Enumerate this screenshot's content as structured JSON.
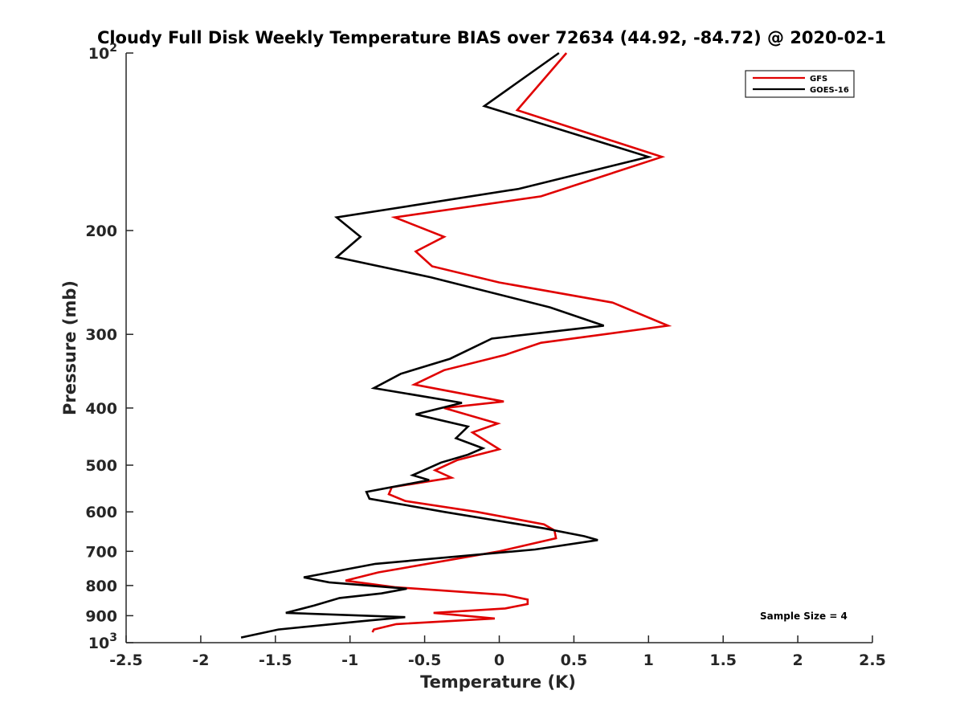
{
  "chart_data": {
    "type": "line",
    "title": "Cloudy Full Disk Weekly Temperature BIAS over 72634 (44.92, -84.72) @ 2020-02-1",
    "xlabel": "Temperature (K)",
    "ylabel": "Pressure (mb)",
    "xlim": [
      -2.5,
      2.5
    ],
    "ylim": [
      100,
      1000
    ],
    "y_scale": "log",
    "y_reversed": true,
    "grid": false,
    "legend_position": "top-right",
    "x_ticks": [
      "-2.5",
      "-2",
      "-1.5",
      "-1",
      "-0.5",
      "0",
      "0.5",
      "1",
      "1.5",
      "2",
      "2.5"
    ],
    "x_tick_values": [
      -2.5,
      -2,
      -1.5,
      -1,
      -0.5,
      0,
      0.5,
      1,
      1.5,
      2,
      2.5
    ],
    "y_ticks": [
      {
        "value": 100,
        "base": "10",
        "exp": "2"
      },
      {
        "value": 200,
        "base": "200",
        "exp": ""
      },
      {
        "value": 300,
        "base": "300",
        "exp": ""
      },
      {
        "value": 400,
        "base": "400",
        "exp": ""
      },
      {
        "value": 500,
        "base": "500",
        "exp": ""
      },
      {
        "value": 600,
        "base": "600",
        "exp": ""
      },
      {
        "value": 700,
        "base": "700",
        "exp": ""
      },
      {
        "value": 800,
        "base": "800",
        "exp": ""
      },
      {
        "value": 900,
        "base": "900",
        "exp": ""
      },
      {
        "value": 1000,
        "base": "10",
        "exp": "3"
      }
    ],
    "annotation": "Sample Size = 4",
    "series": [
      {
        "name": "GFS",
        "color": "#e00000",
        "points": [
          [
            0.45,
            100
          ],
          [
            0.12,
            125
          ],
          [
            1.09,
            150
          ],
          [
            0.28,
            175
          ],
          [
            -0.7,
            190
          ],
          [
            -0.37,
            205
          ],
          [
            -0.56,
            217
          ],
          [
            -0.45,
            230
          ],
          [
            0.0,
            245
          ],
          [
            0.76,
            265
          ],
          [
            1.13,
            290
          ],
          [
            0.28,
            310
          ],
          [
            0.04,
            325
          ],
          [
            -0.37,
            345
          ],
          [
            -0.57,
            365
          ],
          [
            0.03,
            390
          ],
          [
            -0.37,
            400
          ],
          [
            -0.01,
            425
          ],
          [
            -0.18,
            440
          ],
          [
            0.0,
            470
          ],
          [
            -0.28,
            490
          ],
          [
            -0.43,
            510
          ],
          [
            -0.32,
            525
          ],
          [
            -0.72,
            545
          ],
          [
            -0.74,
            560
          ],
          [
            -0.63,
            575
          ],
          [
            -0.15,
            600
          ],
          [
            0.3,
            630
          ],
          [
            0.37,
            645
          ],
          [
            0.38,
            665
          ],
          [
            0.0,
            700
          ],
          [
            -0.81,
            760
          ],
          [
            -1.03,
            785
          ],
          [
            -0.7,
            805
          ],
          [
            0.04,
            830
          ],
          [
            0.19,
            845
          ],
          [
            0.19,
            860
          ],
          [
            0.04,
            875
          ],
          [
            -0.44,
            890
          ],
          [
            -0.03,
            910
          ],
          [
            -0.69,
            930
          ],
          [
            -0.84,
            950
          ],
          [
            -0.85,
            960
          ]
        ]
      },
      {
        "name": "GOES-16",
        "color": "#000000",
        "points": [
          [
            0.4,
            100
          ],
          [
            -0.1,
            123
          ],
          [
            1.0,
            150
          ],
          [
            0.13,
            170
          ],
          [
            -1.09,
            190
          ],
          [
            -0.93,
            205
          ],
          [
            -1.09,
            222
          ],
          [
            -0.46,
            240
          ],
          [
            0.34,
            270
          ],
          [
            0.7,
            290
          ],
          [
            -0.05,
            305
          ],
          [
            -0.33,
            330
          ],
          [
            -0.66,
            350
          ],
          [
            -0.84,
            370
          ],
          [
            -0.25,
            392
          ],
          [
            -0.56,
            410
          ],
          [
            -0.21,
            430
          ],
          [
            -0.29,
            450
          ],
          [
            -0.11,
            468
          ],
          [
            -0.21,
            480
          ],
          [
            -0.39,
            495
          ],
          [
            -0.58,
            520
          ],
          [
            -0.47,
            530
          ],
          [
            -0.89,
            555
          ],
          [
            -0.87,
            570
          ],
          [
            -0.37,
            600
          ],
          [
            0.3,
            640
          ],
          [
            0.57,
            660
          ],
          [
            0.66,
            670
          ],
          [
            0.24,
            695
          ],
          [
            -0.83,
            735
          ],
          [
            -1.31,
            775
          ],
          [
            -1.14,
            790
          ],
          [
            -0.62,
            810
          ],
          [
            -0.79,
            825
          ],
          [
            -1.07,
            840
          ],
          [
            -1.24,
            865
          ],
          [
            -1.43,
            890
          ],
          [
            -0.63,
            905
          ],
          [
            -0.93,
            920
          ],
          [
            -1.48,
            950
          ],
          [
            -1.73,
            980
          ]
        ]
      }
    ]
  }
}
